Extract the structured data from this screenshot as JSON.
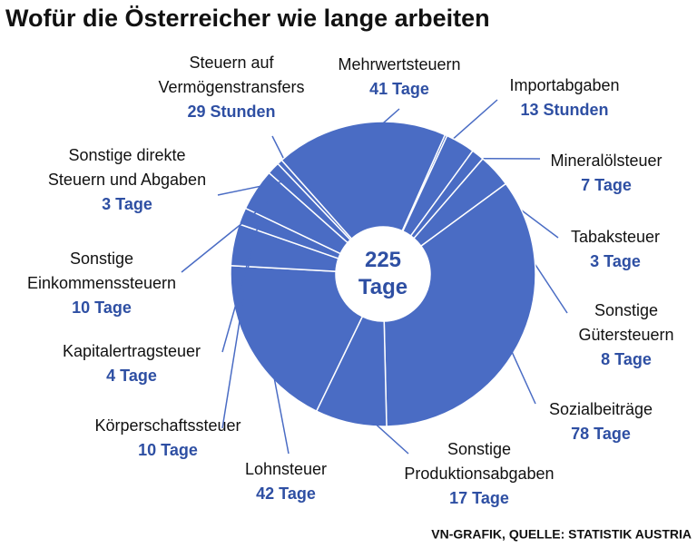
{
  "chart_data": {
    "type": "donut",
    "title": "Wofür die Österreicher wie lange arbeiten",
    "source": "VN-GRAFIK, QUELLE: STATISTIK AUSTRIA",
    "center_label": "225 Tage",
    "color": "#4a6cc4",
    "categories": [
      "Importabgaben",
      "Mineralölsteuer",
      "Tabaksteuer",
      "Sonstige Gütersteuern",
      "Sozialbeiträge",
      "Sonstige Produktionsabgaben",
      "Lohnsteuer",
      "Körperschaftssteuer",
      "Kapitalertragsteuer",
      "Sonstige Einkommenssteuern",
      "Sonstige direkte Steuern und Abgaben",
      "Steuern auf Vermögenstransfers",
      "Mehrwertsteuern"
    ],
    "values": [
      0.5417,
      7,
      3,
      8,
      78,
      17,
      42,
      10,
      4,
      10,
      3,
      1.2083,
      41
    ],
    "value_labels": [
      "13 Stunden",
      "7 Tage",
      "3 Tage",
      "8 Tage",
      "78 Tage",
      "17 Tage",
      "42 Tage",
      "10 Tage",
      "4 Tage",
      "10 Tage",
      "3 Tage",
      "29 Stunden",
      "41 Tage"
    ]
  }
}
